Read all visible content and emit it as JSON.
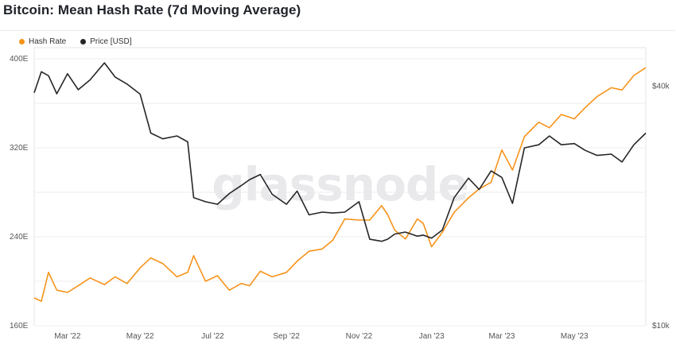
{
  "title": "Bitcoin: Mean Hash Rate (7d Moving Average)",
  "watermark": "glassnode",
  "legend": [
    {
      "label": "Hash Rate",
      "color": "#f7931a"
    },
    {
      "label": "Price [USD]",
      "color": "#262626"
    }
  ],
  "chart_data": {
    "type": "line",
    "title": "Bitcoin: Mean Hash Rate (7d Moving Average)",
    "x_ticks": [
      "Mar '22",
      "May '22",
      "Jul '22",
      "Sep '22",
      "Nov '22",
      "Jan '23",
      "Mar '23",
      "May '23"
    ],
    "x_range": [
      "2022-02-01",
      "2023-06-30"
    ],
    "y_left": {
      "ticks": [
        "160E",
        "240E",
        "320E",
        "400E"
      ],
      "tick_values": [
        160,
        240,
        320,
        400
      ],
      "range": [
        160,
        410
      ],
      "unit": "EH/s"
    },
    "y_right": {
      "ticks": [
        "$10k",
        "$40k"
      ],
      "tick_values": [
        10000,
        40000
      ],
      "scale": "log",
      "range": [
        10000,
        50000
      ]
    },
    "grid": true,
    "legend_position": "top-left",
    "series": [
      {
        "name": "Hash Rate",
        "axis": "left",
        "color": "#f7931a",
        "points": [
          [
            "2022-02-01",
            185
          ],
          [
            "2022-02-07",
            182
          ],
          [
            "2022-02-13",
            208
          ],
          [
            "2022-02-20",
            192
          ],
          [
            "2022-03-01",
            190
          ],
          [
            "2022-03-10",
            196
          ],
          [
            "2022-03-20",
            203
          ],
          [
            "2022-04-01",
            197
          ],
          [
            "2022-04-10",
            204
          ],
          [
            "2022-04-20",
            198
          ],
          [
            "2022-05-01",
            212
          ],
          [
            "2022-05-10",
            221
          ],
          [
            "2022-05-20",
            216
          ],
          [
            "2022-06-01",
            204
          ],
          [
            "2022-06-10",
            208
          ],
          [
            "2022-06-15",
            223
          ],
          [
            "2022-06-25",
            200
          ],
          [
            "2022-07-05",
            205
          ],
          [
            "2022-07-15",
            192
          ],
          [
            "2022-07-25",
            198
          ],
          [
            "2022-08-01",
            196
          ],
          [
            "2022-08-10",
            209
          ],
          [
            "2022-08-20",
            204
          ],
          [
            "2022-09-01",
            208
          ],
          [
            "2022-09-10",
            218
          ],
          [
            "2022-09-20",
            227
          ],
          [
            "2022-10-01",
            229
          ],
          [
            "2022-10-10",
            237
          ],
          [
            "2022-10-20",
            256
          ],
          [
            "2022-11-01",
            255
          ],
          [
            "2022-11-10",
            255
          ],
          [
            "2022-11-20",
            268
          ],
          [
            "2022-11-25",
            260
          ],
          [
            "2022-12-01",
            246
          ],
          [
            "2022-12-10",
            238
          ],
          [
            "2022-12-20",
            256
          ],
          [
            "2022-12-25",
            252
          ],
          [
            "2023-01-01",
            231
          ],
          [
            "2023-01-10",
            244
          ],
          [
            "2023-01-20",
            262
          ],
          [
            "2023-02-01",
            275
          ],
          [
            "2023-02-10",
            283
          ],
          [
            "2023-02-20",
            289
          ],
          [
            "2023-03-01",
            318
          ],
          [
            "2023-03-10",
            300
          ],
          [
            "2023-03-20",
            330
          ],
          [
            "2023-04-01",
            343
          ],
          [
            "2023-04-10",
            338
          ],
          [
            "2023-04-20",
            350
          ],
          [
            "2023-05-01",
            346
          ],
          [
            "2023-05-10",
            356
          ],
          [
            "2023-05-20",
            366
          ],
          [
            "2023-06-01",
            374
          ],
          [
            "2023-06-10",
            372
          ],
          [
            "2023-06-20",
            385
          ],
          [
            "2023-06-30",
            392
          ]
        ]
      },
      {
        "name": "Price [USD]",
        "axis": "right",
        "color": "#262626",
        "points": [
          [
            "2022-02-01",
            38500
          ],
          [
            "2022-02-07",
            43500
          ],
          [
            "2022-02-13",
            42500
          ],
          [
            "2022-02-20",
            38300
          ],
          [
            "2022-03-01",
            43000
          ],
          [
            "2022-03-10",
            39200
          ],
          [
            "2022-03-20",
            41500
          ],
          [
            "2022-04-01",
            45800
          ],
          [
            "2022-04-10",
            42200
          ],
          [
            "2022-04-20",
            40500
          ],
          [
            "2022-05-01",
            38200
          ],
          [
            "2022-05-10",
            30500
          ],
          [
            "2022-05-20",
            29500
          ],
          [
            "2022-06-01",
            30000
          ],
          [
            "2022-06-10",
            29000
          ],
          [
            "2022-06-15",
            21000
          ],
          [
            "2022-06-25",
            20500
          ],
          [
            "2022-07-05",
            20200
          ],
          [
            "2022-07-15",
            21500
          ],
          [
            "2022-07-25",
            22500
          ],
          [
            "2022-08-01",
            23300
          ],
          [
            "2022-08-10",
            24000
          ],
          [
            "2022-08-20",
            21400
          ],
          [
            "2022-09-01",
            20200
          ],
          [
            "2022-09-10",
            21800
          ],
          [
            "2022-09-20",
            19000
          ],
          [
            "2022-10-01",
            19300
          ],
          [
            "2022-10-10",
            19200
          ],
          [
            "2022-10-20",
            19300
          ],
          [
            "2022-11-01",
            20500
          ],
          [
            "2022-11-10",
            16500
          ],
          [
            "2022-11-20",
            16300
          ],
          [
            "2022-11-25",
            16500
          ],
          [
            "2022-12-01",
            17000
          ],
          [
            "2022-12-10",
            17200
          ],
          [
            "2022-12-20",
            16800
          ],
          [
            "2022-12-25",
            16900
          ],
          [
            "2023-01-01",
            16600
          ],
          [
            "2023-01-10",
            17400
          ],
          [
            "2023-01-20",
            21000
          ],
          [
            "2023-02-01",
            23500
          ],
          [
            "2023-02-10",
            22000
          ],
          [
            "2023-02-20",
            24500
          ],
          [
            "2023-03-01",
            23600
          ],
          [
            "2023-03-10",
            20300
          ],
          [
            "2023-03-20",
            28000
          ],
          [
            "2023-04-01",
            28500
          ],
          [
            "2023-04-10",
            30000
          ],
          [
            "2023-04-20",
            28500
          ],
          [
            "2023-05-01",
            28700
          ],
          [
            "2023-05-10",
            27600
          ],
          [
            "2023-05-20",
            26800
          ],
          [
            "2023-06-01",
            27000
          ],
          [
            "2023-06-10",
            25800
          ],
          [
            "2023-06-20",
            28500
          ],
          [
            "2023-06-30",
            30500
          ]
        ]
      }
    ]
  }
}
